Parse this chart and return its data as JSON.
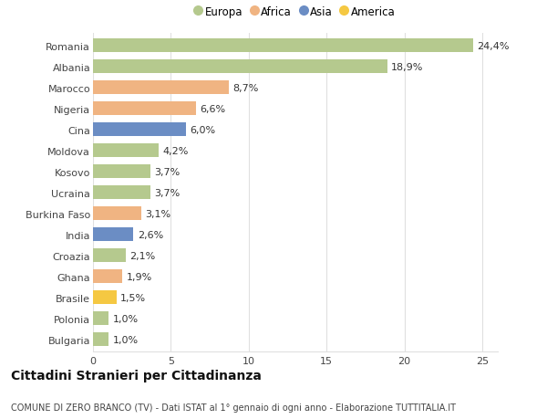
{
  "categories": [
    "Romania",
    "Albania",
    "Marocco",
    "Nigeria",
    "Cina",
    "Moldova",
    "Kosovo",
    "Ucraina",
    "Burkina Faso",
    "India",
    "Croazia",
    "Ghana",
    "Brasile",
    "Polonia",
    "Bulgaria"
  ],
  "values": [
    24.4,
    18.9,
    8.7,
    6.6,
    6.0,
    4.2,
    3.7,
    3.7,
    3.1,
    2.6,
    2.1,
    1.9,
    1.5,
    1.0,
    1.0
  ],
  "labels": [
    "24,4%",
    "18,9%",
    "8,7%",
    "6,6%",
    "6,0%",
    "4,2%",
    "3,7%",
    "3,7%",
    "3,1%",
    "2,6%",
    "2,1%",
    "1,9%",
    "1,5%",
    "1,0%",
    "1,0%"
  ],
  "colors": [
    "#b5c98e",
    "#b5c98e",
    "#f0b482",
    "#f0b482",
    "#6b8dc4",
    "#b5c98e",
    "#b5c98e",
    "#b5c98e",
    "#f0b482",
    "#6b8dc4",
    "#b5c98e",
    "#f0b482",
    "#f5c842",
    "#b5c98e",
    "#b5c98e"
  ],
  "legend_labels": [
    "Europa",
    "Africa",
    "Asia",
    "America"
  ],
  "legend_colors": [
    "#b5c98e",
    "#f0b482",
    "#6b8dc4",
    "#f5c842"
  ],
  "title": "Cittadini Stranieri per Cittadinanza",
  "subtitle": "COMUNE DI ZERO BRANCO (TV) - Dati ISTAT al 1° gennaio di ogni anno - Elaborazione TUTTITALIA.IT",
  "xlim": [
    0,
    26
  ],
  "xticks": [
    0,
    5,
    10,
    15,
    20,
    25
  ],
  "background_color": "#ffffff",
  "grid_color": "#e0e0e0",
  "bar_height": 0.65,
  "label_fontsize": 8,
  "tick_fontsize": 8,
  "title_fontsize": 10,
  "subtitle_fontsize": 7
}
